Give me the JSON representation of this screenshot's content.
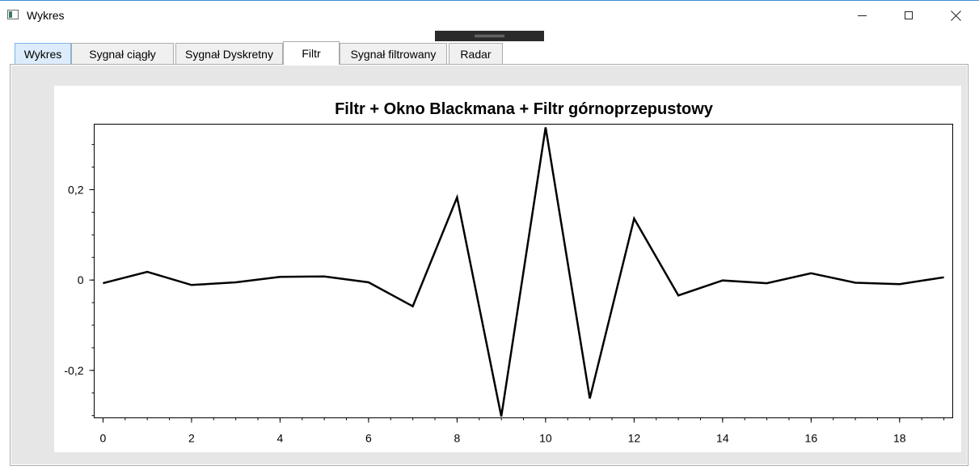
{
  "window": {
    "title": "Wykres",
    "icon": "app-window-icon",
    "controls": [
      "minimize-icon",
      "maximize-icon",
      "close-icon"
    ]
  },
  "tabs": [
    {
      "label": "Wykres"
    },
    {
      "label": "Sygnał ciągły"
    },
    {
      "label": "Sygnał Dyskretny"
    },
    {
      "label": "Filtr"
    },
    {
      "label": "Sygnał filtrowany"
    },
    {
      "label": "Radar"
    }
  ],
  "active_tab": "Filtr",
  "chart_data": {
    "type": "line",
    "title": "Filtr + Okno Blackmana + Filtr górnoprzepustowy",
    "xlabel": "",
    "ylabel": "",
    "xlim": [
      -0.2,
      19.2
    ],
    "ylim": [
      -0.305,
      0.345
    ],
    "x_ticks": [
      0,
      2,
      4,
      6,
      8,
      10,
      12,
      14,
      16,
      18
    ],
    "x_tick_labels": [
      "0",
      "2",
      "4",
      "6",
      "8",
      "10",
      "12",
      "14",
      "16",
      "18"
    ],
    "y_ticks": [
      -0.2,
      0,
      0.2
    ],
    "y_tick_labels": [
      "-0,2",
      "0",
      "0,2"
    ],
    "grid": false,
    "legend": false,
    "line_color": "#000000",
    "series": [
      {
        "x": [
          0,
          1,
          2,
          3,
          4,
          5,
          6,
          7,
          8,
          9,
          10,
          11,
          12,
          13,
          14,
          15,
          16,
          17,
          18,
          19
        ],
        "values": [
          -0.007,
          0.018,
          -0.011,
          -0.005,
          0.007,
          0.008,
          -0.005,
          -0.058,
          0.183,
          -0.302,
          0.338,
          -0.262,
          0.136,
          -0.034,
          -0.001,
          -0.007,
          0.015,
          -0.006,
          -0.009,
          0.006
        ]
      }
    ]
  }
}
